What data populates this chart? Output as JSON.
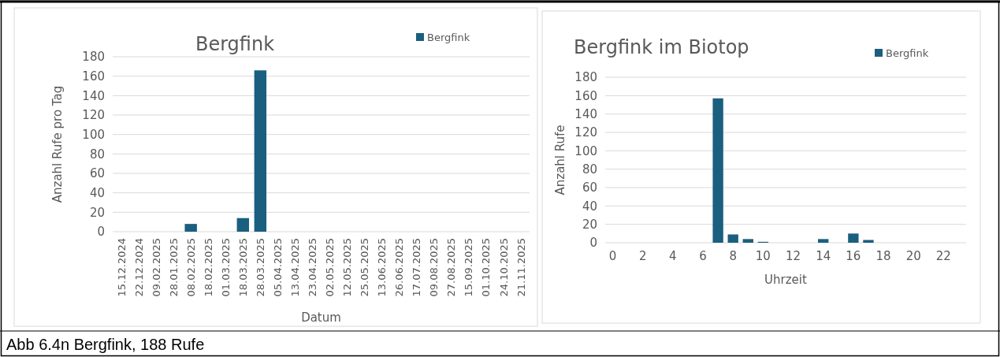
{
  "chart_data": [
    {
      "type": "bar",
      "title": "Bergfink",
      "xlabel": "Datum",
      "ylabel": "Anzahl Rufe pro Tag",
      "categories": [
        "15.12.2024",
        "22.12.2024",
        "09.02.2025",
        "28.01.2025",
        "08.02.2025",
        "18.02.2025",
        "01.03.2025",
        "18.03.2025",
        "28.03.2025",
        "05.04.2025",
        "13.04.2025",
        "23.04.2025",
        "02.05.2025",
        "12.05.2025",
        "25.05.2025",
        "13.06.2025",
        "26.06.2025",
        "17.07.2025",
        "09.08.2025",
        "27.08.2025",
        "15.09.2025",
        "01.10.2025",
        "24.10.2025",
        "21.11.2025"
      ],
      "series": [
        {
          "name": "Bergfink",
          "color": "#1a5f7f",
          "values": [
            0,
            0,
            0,
            0,
            8,
            0,
            0,
            14,
            166,
            0,
            0,
            0,
            0,
            0,
            0,
            0,
            0,
            0,
            0,
            0,
            0,
            0,
            0,
            0
          ]
        }
      ],
      "ylim": [
        0,
        180
      ],
      "yticks": [
        0,
        20,
        40,
        60,
        80,
        100,
        120,
        140,
        160,
        180
      ],
      "grid": "y",
      "legend": "top right",
      "annotations": [
        "Abb 6.4n Bergfink, 188 Rufe"
      ]
    },
    {
      "type": "bar",
      "title": "Bergfink im Biotop",
      "xlabel": "Uhrzeit",
      "ylabel": "Anzahl Rufe",
      "categories": [
        "0",
        null,
        "2",
        null,
        "4",
        null,
        "6",
        null,
        "8",
        null,
        "10",
        null,
        "12",
        null,
        "14",
        null,
        "16",
        null,
        "18",
        null,
        "20",
        null,
        "22",
        null
      ],
      "series": [
        {
          "name": "Bergfink",
          "color": "#1a5f7f",
          "values": [
            0,
            0,
            0,
            0,
            0,
            0,
            0,
            157,
            9,
            4,
            1,
            0,
            0,
            0,
            4,
            0,
            10,
            3,
            0,
            0,
            0,
            0,
            0,
            0
          ]
        }
      ],
      "ylim": [
        0,
        180
      ],
      "yticks": [
        0,
        20,
        40,
        60,
        80,
        100,
        120,
        140,
        160,
        180
      ],
      "grid": "y",
      "legend": "top right"
    }
  ]
}
